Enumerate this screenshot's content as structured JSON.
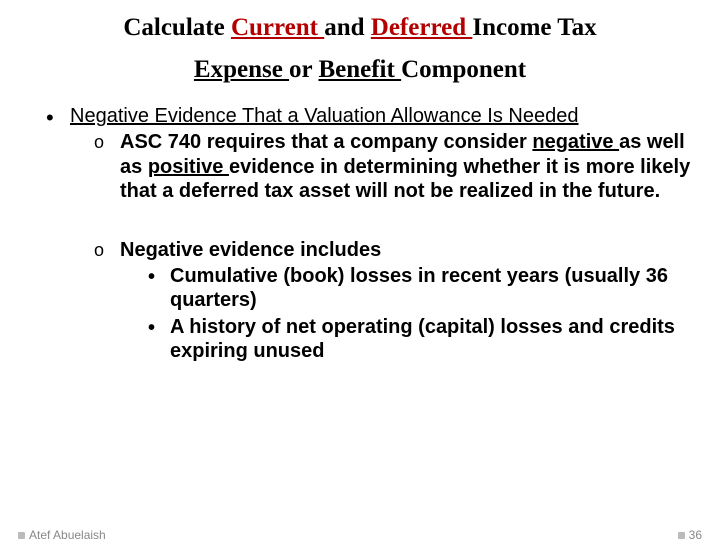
{
  "title": {
    "t1": "Calculate ",
    "t2_red_ul": "Current ",
    "t3": "and ",
    "t4_red_ul": "Deferred ",
    "t5": "Income Tax"
  },
  "subtitle": {
    "s1_ul": "Expense ",
    "s2": "or ",
    "s3_ul": "Benefit ",
    "s4": "Component"
  },
  "heading": "Negative Evidence That a Valuation Allowance Is Needed",
  "p1": {
    "a": "ASC 740 requires that a company consider ",
    "b_ul": "negative ",
    "c": "as well as ",
    "d_ul": "positive ",
    "e": "evidence in determining whether it is more likely that a deferred tax asset will not be realized in the future."
  },
  "p2": {
    "lead": "Negative evidence includes",
    "b1": "Cumulative (book) losses in recent years (usually 36 quarters)",
    "b2": "A history of net operating (capital) losses and credits expiring unused"
  },
  "footer": {
    "author": "Atef Abuelaish",
    "page": "36"
  },
  "colors": {
    "red": "#b30000",
    "text": "#000000",
    "muted": "#888888"
  }
}
